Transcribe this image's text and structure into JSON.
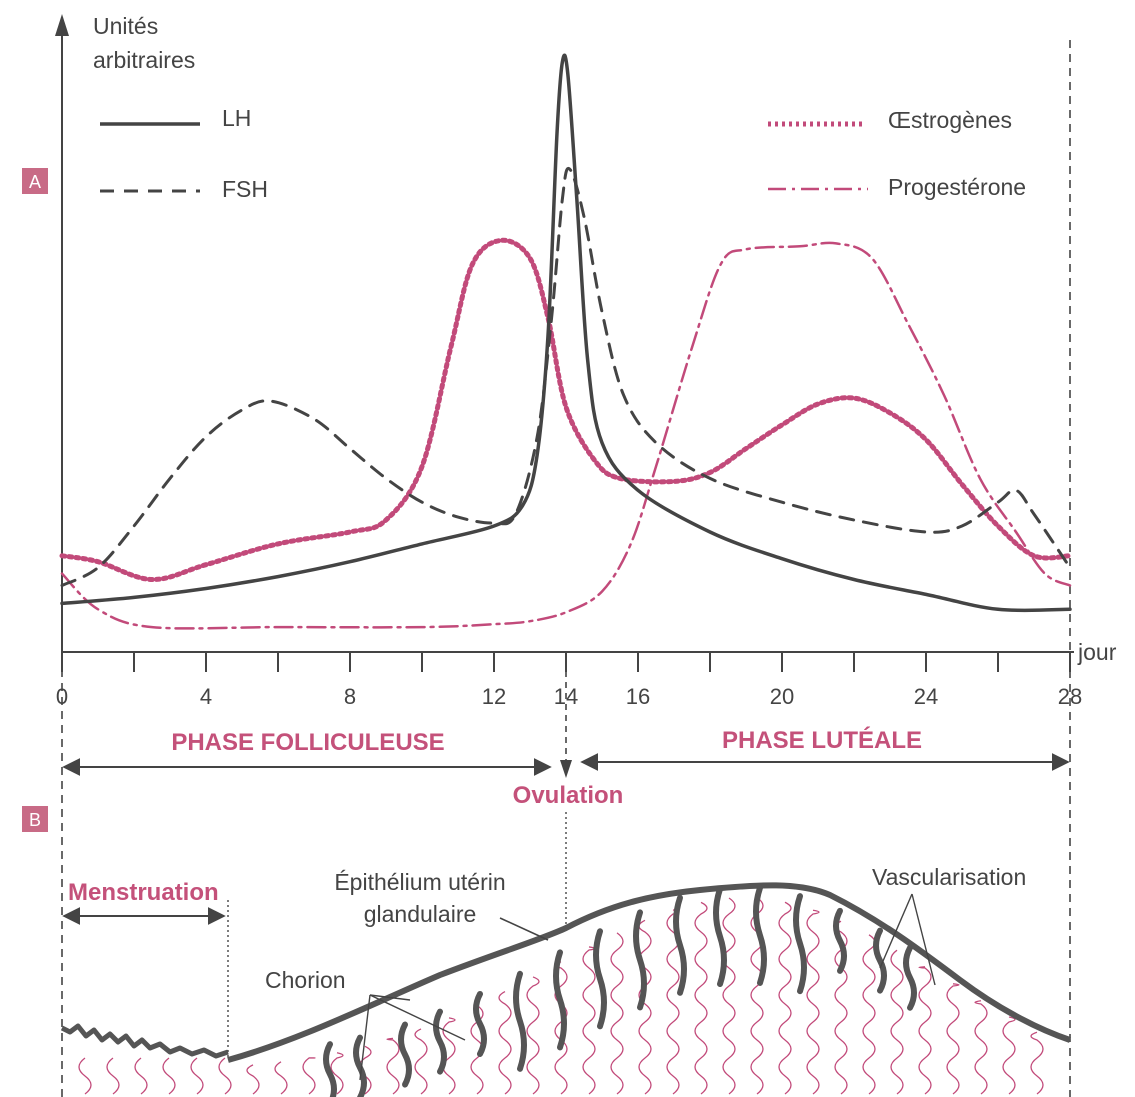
{
  "colors": {
    "ink": "#444444",
    "accent": "#c4517a",
    "tissue_line": "#c24a7a",
    "panel_tag": "#c86b86"
  },
  "panels": {
    "a": "A",
    "b": "B"
  },
  "chart_data": {
    "type": "line",
    "ylabel_line1": "Unités",
    "ylabel_line2": "arbitraires",
    "xlabel": "jour",
    "xlim": [
      0,
      28
    ],
    "ylim": [
      0,
      100
    ],
    "x_ticks": [
      0,
      2,
      4,
      6,
      8,
      10,
      12,
      14,
      16,
      18,
      20,
      22,
      24,
      26,
      28
    ],
    "x_tick_labels": [
      {
        "x": 0,
        "label": "0"
      },
      {
        "x": 4,
        "label": "4"
      },
      {
        "x": 8,
        "label": "8"
      },
      {
        "x": 12,
        "label": "12"
      },
      {
        "x": 14,
        "label": "14"
      },
      {
        "x": 16,
        "label": "16"
      },
      {
        "x": 20,
        "label": "20"
      },
      {
        "x": 24,
        "label": "24"
      },
      {
        "x": 28,
        "label": "28"
      }
    ],
    "legend": {
      "left": [
        "LH",
        "FSH"
      ],
      "right": [
        "Œstrogènes",
        "Progestérone"
      ]
    },
    "series": [
      {
        "name": "LH",
        "style": "solid",
        "points": [
          [
            0,
            7
          ],
          [
            2,
            8
          ],
          [
            4,
            9.5
          ],
          [
            6,
            11.5
          ],
          [
            8,
            14
          ],
          [
            10,
            17
          ],
          [
            12,
            20
          ],
          [
            12.8,
            23.5
          ],
          [
            13.2,
            32
          ],
          [
            13.5,
            52
          ],
          [
            13.75,
            86
          ],
          [
            13.9,
            98
          ],
          [
            14.05,
            96
          ],
          [
            14.3,
            75
          ],
          [
            14.6,
            48
          ],
          [
            15,
            34
          ],
          [
            16,
            26
          ],
          [
            18,
            19
          ],
          [
            20,
            14.5
          ],
          [
            22,
            11
          ],
          [
            24,
            8.5
          ],
          [
            26,
            6
          ],
          [
            28,
            6
          ]
        ]
      },
      {
        "name": "FSH",
        "style": "dashed",
        "points": [
          [
            0,
            10
          ],
          [
            1,
            13
          ],
          [
            2,
            20
          ],
          [
            3,
            28
          ],
          [
            4,
            35
          ],
          [
            5,
            39.5
          ],
          [
            5.8,
            41
          ],
          [
            7,
            38
          ],
          [
            8,
            33
          ],
          [
            9,
            28
          ],
          [
            10,
            24
          ],
          [
            11,
            21.5
          ],
          [
            12,
            20.5
          ],
          [
            12.6,
            22
          ],
          [
            13.2,
            35
          ],
          [
            13.6,
            55
          ],
          [
            13.9,
            75
          ],
          [
            14.1,
            80
          ],
          [
            14.5,
            72
          ],
          [
            15,
            56
          ],
          [
            15.6,
            42
          ],
          [
            16.5,
            34
          ],
          [
            18,
            28
          ],
          [
            20,
            24
          ],
          [
            22,
            21
          ],
          [
            24,
            19
          ],
          [
            25,
            20
          ],
          [
            26,
            24
          ],
          [
            26.5,
            26
          ],
          [
            27,
            22
          ],
          [
            28,
            13
          ]
        ]
      },
      {
        "name": "Œstrogènes",
        "style": "dotted",
        "points": [
          [
            0,
            15
          ],
          [
            1,
            14
          ],
          [
            2.5,
            11
          ],
          [
            4,
            13.5
          ],
          [
            6,
            17
          ],
          [
            8,
            19
          ],
          [
            9,
            21
          ],
          [
            10,
            30
          ],
          [
            10.8,
            50
          ],
          [
            11.4,
            64
          ],
          [
            12.2,
            68
          ],
          [
            13,
            65
          ],
          [
            13.5,
            55
          ],
          [
            14,
            40
          ],
          [
            14.8,
            31
          ],
          [
            15.5,
            28
          ],
          [
            17,
            27.5
          ],
          [
            18,
            29
          ],
          [
            19,
            33
          ],
          [
            20,
            37
          ],
          [
            21,
            40.5
          ],
          [
            22,
            41.5
          ],
          [
            23,
            39
          ],
          [
            24,
            34.5
          ],
          [
            25,
            27
          ],
          [
            26,
            20
          ],
          [
            27,
            15
          ],
          [
            28,
            15
          ]
        ]
      },
      {
        "name": "Progestérone",
        "style": "dashdot",
        "points": [
          [
            0,
            12
          ],
          [
            1,
            6
          ],
          [
            2.5,
            3
          ],
          [
            6,
            3
          ],
          [
            10,
            3
          ],
          [
            12,
            3.5
          ],
          [
            13,
            4
          ],
          [
            14,
            5.5
          ],
          [
            15,
            9
          ],
          [
            15.8,
            17
          ],
          [
            16.5,
            30
          ],
          [
            17.5,
            50
          ],
          [
            18.3,
            64
          ],
          [
            19,
            66.5
          ],
          [
            20.5,
            67
          ],
          [
            21.5,
            67.5
          ],
          [
            22.5,
            65
          ],
          [
            23.5,
            54
          ],
          [
            24.5,
            42
          ],
          [
            25.5,
            28
          ],
          [
            26.5,
            19
          ],
          [
            27.3,
            12
          ],
          [
            28,
            10
          ]
        ]
      }
    ],
    "ovulation_day": 14
  },
  "phases": {
    "folliculaire": "PHASE FOLLICULEUSE",
    "luteale": "PHASE LUTÉALE",
    "ovulation": "Ovulation",
    "menstruation": "Menstruation"
  },
  "annotations": {
    "epithelium_line1": "Épithélium utérin",
    "epithelium_line2": "glandulaire",
    "chorion": "Chorion",
    "vascularisation": "Vascularisation"
  }
}
